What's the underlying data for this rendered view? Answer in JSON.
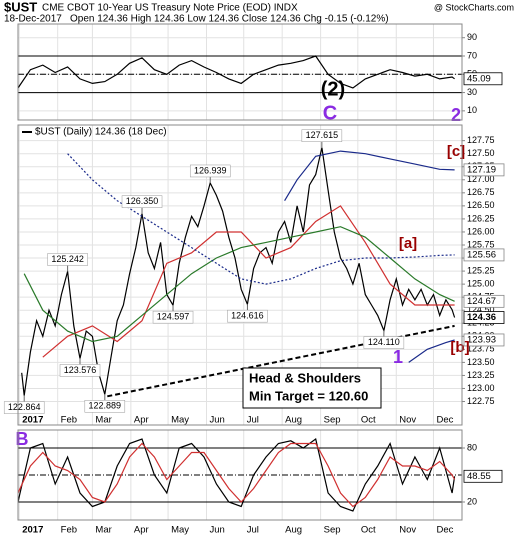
{
  "header": {
    "symbol": "$UST",
    "name": "CME CBOT 10-Year US Treasury Note Price (EOD) INDX",
    "source": "@ StockCharts.com",
    "date": "18-Dec-2017",
    "quote": "Open 124.36 High 124.36 Low 124.36 Close 124.36 Chg -0.15 (-0.12%)"
  },
  "chart_data": [
    {
      "type": "line",
      "xlim": [
        0,
        358
      ],
      "ylim": [
        0,
        105
      ],
      "yticks": [
        10,
        30,
        50,
        70,
        90
      ],
      "hlines": [
        {
          "value": 70,
          "style": "solid"
        },
        {
          "value": 50,
          "style": "dashdot"
        },
        {
          "value": 30,
          "style": "solid"
        }
      ],
      "series": [
        {
          "color": "#000000",
          "x": [
            0,
            10,
            20,
            30,
            40,
            50,
            60,
            70,
            80,
            90,
            100,
            110,
            120,
            130,
            140,
            150,
            160,
            170,
            180,
            190,
            200,
            210,
            220,
            230,
            240,
            250,
            260,
            270,
            280,
            290,
            300,
            310,
            320,
            330,
            340,
            350,
            352
          ],
          "values": [
            35,
            55,
            60,
            52,
            58,
            45,
            40,
            42,
            50,
            62,
            68,
            55,
            50,
            60,
            65,
            58,
            52,
            45,
            40,
            50,
            55,
            60,
            62,
            65,
            70,
            50,
            40,
            35,
            45,
            50,
            55,
            52,
            48,
            50,
            45,
            47,
            45.09
          ]
        }
      ],
      "last_value": 45.09,
      "waves": [
        {
          "text": "(2)",
          "color": "#000000"
        },
        {
          "text": "2",
          "color": "#8a2be2"
        }
      ]
    },
    {
      "type": "line",
      "xlim": [
        0,
        358
      ],
      "ylim": [
        122.3,
        128.05
      ],
      "yticks": [
        {
          "value": 122.75,
          "label": "122.75"
        },
        {
          "value": 123,
          "label": "123.00"
        },
        123.25,
        {
          "value": 123.5,
          "label": "123.50"
        },
        123.75,
        {
          "value": 124,
          "label": "124.00"
        },
        124.25,
        {
          "value": 124.5,
          "label": "124.50"
        },
        124.75,
        {
          "value": 125,
          "label": "125.00"
        },
        125.25,
        {
          "value": 125.5,
          "label": "125.50"
        },
        125.75,
        {
          "value": 126,
          "label": "126.00"
        },
        126.25,
        {
          "value": 126.5,
          "label": "126.50"
        },
        126.75,
        {
          "value": 127,
          "label": "127.00"
        },
        127.25,
        {
          "value": 127.5,
          "label": "127.50"
        },
        127.75
      ],
      "xticks": [
        {
          "value": 1,
          "label": "2017"
        },
        {
          "value": 32,
          "label": "Feb"
        },
        {
          "value": 60,
          "label": "Mar"
        },
        {
          "value": 91,
          "label": "Apr"
        },
        {
          "value": 121,
          "label": "May"
        },
        {
          "value": 152,
          "label": "Jun"
        },
        {
          "value": 182,
          "label": "Jul"
        },
        {
          "value": 213,
          "label": "Aug"
        },
        {
          "value": 244,
          "label": "Sep"
        },
        {
          "value": 274,
          "label": "Oct"
        },
        {
          "value": 305,
          "label": "Nov"
        },
        {
          "value": 335,
          "label": "Dec"
        }
      ],
      "series": [
        {
          "name": "$UST (Daily) 124.36 (18 Dec)",
          "color": "#000000",
          "style": "solid",
          "x": [
            3,
            5,
            10,
            15,
            20,
            25,
            30,
            35,
            40,
            45,
            50,
            55,
            60,
            65,
            70,
            75,
            80,
            85,
            90,
            95,
            100,
            105,
            110,
            115,
            120,
            125,
            130,
            135,
            140,
            145,
            150,
            155,
            160,
            165,
            170,
            175,
            180,
            185,
            190,
            195,
            200,
            205,
            210,
            215,
            220,
            225,
            230,
            235,
            240,
            245,
            250,
            255,
            260,
            265,
            270,
            275,
            280,
            285,
            290,
            295,
            300,
            305,
            310,
            315,
            320,
            325,
            330,
            335,
            340,
            345,
            350,
            352
          ],
          "values": [
            123.3,
            122.864,
            123.7,
            124.3,
            124.0,
            124.5,
            124.2,
            124.8,
            125.242,
            124.2,
            123.576,
            124.1,
            124.0,
            123.3,
            122.889,
            123.6,
            124.3,
            124.6,
            125.2,
            125.7,
            126.35,
            125.6,
            125.3,
            125.8,
            124.8,
            124.597,
            125.4,
            125.9,
            126.3,
            126.1,
            126.5,
            126.939,
            126.7,
            126.4,
            125.9,
            125.5,
            124.9,
            124.616,
            125.3,
            125.6,
            125.7,
            125.4,
            126.0,
            126.2,
            125.8,
            126.5,
            126.0,
            126.9,
            127.1,
            127.615,
            126.8,
            126.0,
            125.5,
            125.3,
            125.0,
            125.4,
            124.8,
            124.6,
            124.4,
            124.11,
            124.7,
            125.1,
            124.6,
            124.9,
            124.7,
            124.9,
            124.6,
            124.8,
            124.4,
            124.7,
            124.51,
            124.36
          ]
        },
        {
          "color": "#d03030",
          "style": "solid",
          "x": [
            20,
            40,
            60,
            80,
            100,
            120,
            140,
            160,
            180,
            200,
            220,
            240,
            260,
            280,
            300,
            320,
            340,
            352
          ],
          "values": [
            123.6,
            124.0,
            124.2,
            123.9,
            124.3,
            125.4,
            125.6,
            126.0,
            126.0,
            125.5,
            125.7,
            126.2,
            126.5,
            125.8,
            125.0,
            124.6,
            124.6,
            124.6
          ]
        },
        {
          "color": "#2a7a2a",
          "style": "solid",
          "x": [
            5,
            20,
            40,
            60,
            80,
            100,
            120,
            140,
            160,
            180,
            200,
            220,
            240,
            260,
            280,
            300,
            320,
            340,
            352
          ],
          "values": [
            125.2,
            124.5,
            124.1,
            123.9,
            124.0,
            124.4,
            124.8,
            125.2,
            125.5,
            125.7,
            125.8,
            125.9,
            126.0,
            126.1,
            125.9,
            125.5,
            125.1,
            124.8,
            124.67
          ]
        },
        {
          "color": "#1a2a8a",
          "style": "dotted",
          "x": [
            40,
            60,
            80,
            100,
            120,
            140,
            160,
            180,
            200,
            220,
            240,
            260,
            280,
            300,
            320,
            340,
            352
          ],
          "values": [
            127.5,
            127.0,
            126.6,
            126.3,
            126.0,
            125.7,
            125.4,
            125.1,
            125.0,
            125.1,
            125.3,
            125.45,
            125.5,
            125.5,
            125.52,
            125.55,
            125.56
          ]
        },
        {
          "color": "#1a2a8a",
          "style": "solid",
          "x": [
            215,
            225,
            240,
            260,
            280,
            300,
            320,
            340,
            352
          ],
          "values": [
            126.6,
            127.0,
            127.45,
            127.55,
            127.5,
            127.4,
            127.3,
            127.2,
            127.19
          ]
        },
        {
          "color": "#1a2a8a",
          "style": "solid",
          "x": [
            315,
            330,
            345,
            352
          ],
          "values": [
            123.5,
            123.75,
            123.88,
            123.93
          ]
        },
        {
          "color": "#000000",
          "style": "dashed",
          "x": [
            72,
            352
          ],
          "values": [
            122.85,
            124.2
          ]
        }
      ],
      "points": [
        {
          "x": 5,
          "value": 122.864
        },
        {
          "x": 40,
          "value": 125.242
        },
        {
          "x": 50,
          "value": 123.576
        },
        {
          "x": 70,
          "value": 122.889
        },
        {
          "x": 100,
          "value": 126.35,
          "label": "126.350"
        },
        {
          "x": 125,
          "value": 124.597
        },
        {
          "x": 155,
          "value": 126.939
        },
        {
          "x": 185,
          "value": 124.616
        },
        {
          "x": 245,
          "value": 127.615
        },
        {
          "x": 295,
          "value": 124.11,
          "label": "124.110"
        }
      ],
      "level_labels": [
        127.19,
        125.56,
        124.67,
        124.36,
        123.93
      ],
      "waves": [
        {
          "text": "C",
          "color": "#8a2be2"
        },
        {
          "text": "[c]",
          "color": "#990000"
        },
        {
          "text": "[a]",
          "color": "#990000"
        },
        {
          "text": "1",
          "color": "#8a2be2"
        },
        {
          "text": "[b]",
          "color": "#990000"
        }
      ],
      "annotation": [
        "Head & Shoulders",
        "Min Target = 120.60"
      ]
    },
    {
      "type": "line",
      "xlim": [
        0,
        358
      ],
      "ylim": [
        0,
        100
      ],
      "yticks": [
        20,
        80
      ],
      "xticks": [
        {
          "value": 1,
          "label": "2017"
        },
        {
          "value": 32,
          "label": "Feb"
        },
        {
          "value": 60,
          "label": "Mar"
        },
        {
          "value": 91,
          "label": "Apr"
        },
        {
          "value": 121,
          "label": "May"
        },
        {
          "value": 152,
          "label": "Jun"
        },
        {
          "value": 182,
          "label": "Jul"
        },
        {
          "value": 213,
          "label": "Aug"
        },
        {
          "value": 244,
          "label": "Sep"
        },
        {
          "value": 274,
          "label": "Oct"
        },
        {
          "value": 305,
          "label": "Nov"
        },
        {
          "value": 335,
          "label": "Dec"
        }
      ],
      "hlines": [
        {
          "value": 80,
          "style": "solid"
        },
        {
          "value": 50,
          "style": "dashdot"
        },
        {
          "value": 20,
          "style": "solid"
        }
      ],
      "series": [
        {
          "color": "#000000",
          "style": "solid",
          "x": [
            0,
            10,
            20,
            30,
            40,
            50,
            60,
            70,
            80,
            90,
            100,
            110,
            120,
            130,
            140,
            150,
            160,
            170,
            180,
            190,
            200,
            210,
            220,
            230,
            240,
            250,
            260,
            270,
            280,
            290,
            300,
            310,
            320,
            330,
            340,
            350,
            352
          ],
          "values": [
            20,
            80,
            85,
            40,
            70,
            30,
            15,
            20,
            60,
            85,
            90,
            50,
            30,
            80,
            85,
            70,
            40,
            20,
            15,
            50,
            70,
            85,
            88,
            80,
            90,
            30,
            15,
            10,
            40,
            60,
            85,
            40,
            70,
            45,
            80,
            30,
            48.55
          ]
        },
        {
          "color": "#d03030",
          "style": "solid",
          "x": [
            0,
            10,
            20,
            30,
            40,
            50,
            60,
            70,
            80,
            90,
            100,
            110,
            120,
            130,
            140,
            150,
            160,
            170,
            180,
            190,
            200,
            210,
            220,
            230,
            240,
            250,
            260,
            270,
            280,
            290,
            300,
            310,
            320,
            330,
            340,
            350,
            352
          ],
          "values": [
            30,
            60,
            75,
            60,
            55,
            45,
            25,
            20,
            40,
            70,
            85,
            70,
            45,
            60,
            75,
            75,
            55,
            35,
            20,
            35,
            55,
            75,
            85,
            85,
            85,
            60,
            30,
            15,
            25,
            45,
            70,
            60,
            60,
            55,
            65,
            50,
            45
          ]
        }
      ],
      "last_value": 48.55,
      "waves": [
        {
          "text": "B",
          "color": "#8a2be2"
        }
      ]
    }
  ]
}
